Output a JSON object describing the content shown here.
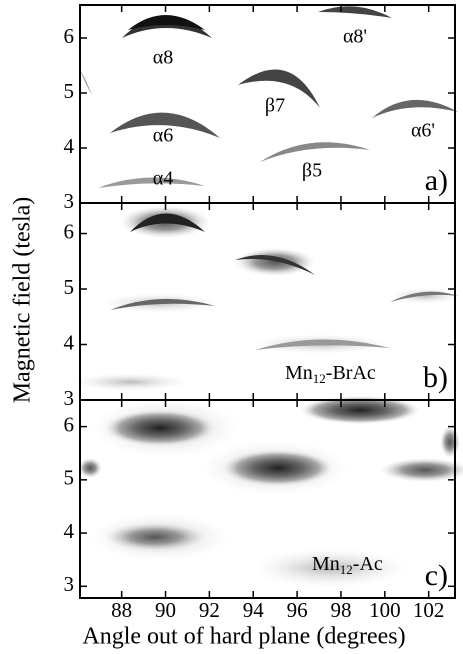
{
  "chart_data": {
    "type": "contour",
    "x_label": "Angle out of hard plane (degrees)",
    "y_label": "Magnetic field (tesla)",
    "xlim": [
      86.1,
      103.2
    ],
    "xticks": [
      88,
      90,
      92,
      94,
      96,
      98,
      100,
      102
    ],
    "panels": [
      {
        "label": "a)",
        "ylim": [
          3,
          6.6
        ],
        "yticks": [
          3,
          4,
          5,
          6
        ],
        "annotations": [
          "α8",
          "α8'",
          "β7",
          "α6",
          "α6'",
          "β5",
          "α4"
        ]
      },
      {
        "label": "b)",
        "ylim": [
          3,
          6.55
        ],
        "yticks": [
          3,
          4,
          5,
          6
        ],
        "sample": {
          "base": "Mn",
          "sub": "12",
          "rest": "-BrAc"
        }
      },
      {
        "label": "c)",
        "ylim": [
          2.78,
          6.5
        ],
        "yticks": [
          3,
          4,
          5,
          6
        ],
        "sample": {
          "base": "Mn",
          "sub": "12",
          "rest": "-Ac"
        }
      }
    ]
  }
}
